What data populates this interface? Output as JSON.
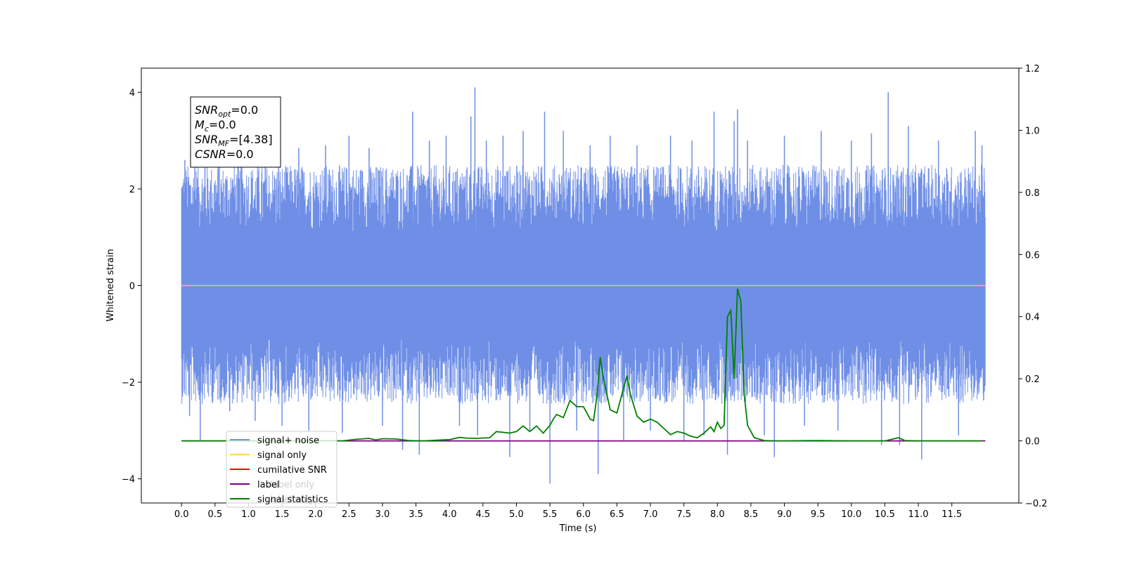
{
  "chart_data": {
    "type": "line",
    "title": "",
    "xlabel": "Time (s)",
    "ylabel": "Whitened strain",
    "y2label": "",
    "xlim": [
      -0.6,
      12.5
    ],
    "ylim": [
      -4.5,
      4.5
    ],
    "y2lim": [
      -0.2,
      1.2
    ],
    "x_ticks": [
      "0.0",
      "0.5",
      "1.0",
      "1.5",
      "2.0",
      "2.5",
      "3.0",
      "3.5",
      "4.0",
      "4.5",
      "5.0",
      "5.5",
      "6.0",
      "6.5",
      "7.0",
      "7.5",
      "8.0",
      "8.5",
      "9.0",
      "9.5",
      "10.0",
      "10.5",
      "11.0",
      "11.5"
    ],
    "y_ticks": [
      "-4",
      "-2",
      "0",
      "2",
      "4"
    ],
    "y2_ticks": [
      "-0.2",
      "0.0",
      "0.2",
      "0.4",
      "0.6",
      "0.8",
      "1.0",
      "1.2"
    ],
    "grid": false,
    "legend_position": "lower-left",
    "noise_band": {
      "x_range": [
        0.0,
        12.0
      ],
      "typical_range": [
        -1.8,
        1.8
      ],
      "spikes": [
        [
          0.05,
          2.6
        ],
        [
          0.12,
          -2.7
        ],
        [
          0.2,
          3.2
        ],
        [
          0.28,
          -3.2
        ],
        [
          0.35,
          3.05
        ],
        [
          0.55,
          2.75
        ],
        [
          0.72,
          -2.6
        ],
        [
          0.9,
          2.9
        ],
        [
          1.1,
          -2.8
        ],
        [
          1.25,
          2.75
        ],
        [
          1.45,
          3.0
        ],
        [
          1.5,
          -2.9
        ],
        [
          1.75,
          2.85
        ],
        [
          1.9,
          -3.0
        ],
        [
          2.15,
          2.9
        ],
        [
          2.4,
          -3.05
        ],
        [
          2.5,
          3.1
        ],
        [
          2.8,
          2.85
        ],
        [
          3.0,
          -2.9
        ],
        [
          3.3,
          -3.4
        ],
        [
          3.45,
          3.6
        ],
        [
          3.55,
          -3.5
        ],
        [
          3.7,
          3.0
        ],
        [
          3.95,
          3.1
        ],
        [
          4.15,
          -2.9
        ],
        [
          4.32,
          3.5
        ],
        [
          4.38,
          4.1
        ],
        [
          4.42,
          -3.1
        ],
        [
          4.55,
          3.0
        ],
        [
          4.8,
          3.1
        ],
        [
          4.9,
          -3.55
        ],
        [
          5.1,
          3.2
        ],
        [
          5.2,
          -3.0
        ],
        [
          5.42,
          3.6
        ],
        [
          5.5,
          -4.1
        ],
        [
          5.7,
          3.2
        ],
        [
          5.9,
          -3.0
        ],
        [
          6.1,
          2.9
        ],
        [
          6.22,
          -3.9
        ],
        [
          6.4,
          3.1
        ],
        [
          6.6,
          -3.2
        ],
        [
          6.8,
          2.9
        ],
        [
          7.0,
          -3.0
        ],
        [
          7.3,
          3.1
        ],
        [
          7.5,
          -3.2
        ],
        [
          7.62,
          3.0
        ],
        [
          7.8,
          -3.1
        ],
        [
          7.95,
          3.6
        ],
        [
          8.15,
          -3.5
        ],
        [
          8.25,
          3.4
        ],
        [
          8.3,
          3.65
        ],
        [
          8.45,
          3.0
        ],
        [
          8.7,
          -3.1
        ],
        [
          8.85,
          -3.55
        ],
        [
          9.0,
          3.1
        ],
        [
          9.3,
          -2.9
        ],
        [
          9.55,
          3.2
        ],
        [
          9.8,
          -3.0
        ],
        [
          10.0,
          3.0
        ],
        [
          10.3,
          3.15
        ],
        [
          10.45,
          -3.3
        ],
        [
          10.55,
          4.0
        ],
        [
          10.72,
          -3.3
        ],
        [
          10.85,
          3.3
        ],
        [
          11.05,
          -3.6
        ],
        [
          11.3,
          3.0
        ],
        [
          11.6,
          -3.1
        ],
        [
          11.85,
          3.2
        ],
        [
          11.95,
          2.9
        ]
      ]
    },
    "series": [
      {
        "name": "signal+ noise",
        "color": "#6f8fe6",
        "axis": "left",
        "description_values": "noise band"
      },
      {
        "name": "signal only",
        "color": "#ffbf40",
        "axis": "left",
        "x": [
          0.0,
          12.0
        ],
        "y": [
          0.0,
          0.0
        ]
      },
      {
        "name": "cumilative SNR",
        "color": "#ff0000",
        "axis": "left",
        "x": [],
        "y": []
      },
      {
        "name": "label",
        "color": "#800080",
        "axis": "right",
        "x": [
          0.0,
          12.0
        ],
        "y": [
          0.0,
          0.0
        ]
      },
      {
        "name": "signal statistics",
        "color": "#008000",
        "axis": "right",
        "x": [
          0.0,
          2.0,
          2.4,
          2.6,
          2.8,
          2.9,
          3.0,
          3.2,
          3.4,
          3.6,
          3.8,
          4.0,
          4.15,
          4.25,
          4.4,
          4.6,
          4.7,
          4.9,
          5.0,
          5.1,
          5.2,
          5.3,
          5.4,
          5.5,
          5.55,
          5.6,
          5.7,
          5.8,
          5.9,
          6.0,
          6.1,
          6.15,
          6.2,
          6.25,
          6.3,
          6.4,
          6.5,
          6.6,
          6.65,
          6.7,
          6.8,
          6.9,
          7.0,
          7.05,
          7.1,
          7.2,
          7.3,
          7.4,
          7.5,
          7.6,
          7.7,
          7.8,
          7.9,
          7.95,
          8.0,
          8.05,
          8.1,
          8.15,
          8.2,
          8.25,
          8.3,
          8.35,
          8.4,
          8.45,
          8.55,
          8.7,
          8.85,
          9.0,
          9.5,
          10.0,
          10.5,
          10.6,
          10.7,
          10.8,
          11.0,
          11.5,
          11.95
        ],
        "y": [
          0.0,
          0.0,
          0.0,
          0.005,
          0.008,
          0.003,
          0.007,
          0.006,
          0.001,
          0.0,
          0.002,
          0.004,
          0.011,
          0.009,
          0.008,
          0.01,
          0.03,
          0.025,
          0.03,
          0.048,
          0.03,
          0.048,
          0.025,
          0.05,
          0.07,
          0.085,
          0.075,
          0.13,
          0.11,
          0.11,
          0.07,
          0.065,
          0.14,
          0.27,
          0.2,
          0.1,
          0.09,
          0.17,
          0.21,
          0.15,
          0.08,
          0.06,
          0.07,
          0.065,
          0.06,
          0.04,
          0.02,
          0.03,
          0.025,
          0.015,
          0.01,
          0.025,
          0.045,
          0.03,
          0.06,
          0.04,
          0.05,
          0.4,
          0.42,
          0.2,
          0.49,
          0.45,
          0.15,
          0.05,
          0.01,
          0.001,
          0.0,
          0.0,
          0.001,
          0.0,
          0.0,
          0.005,
          0.01,
          0.001,
          0.0,
          0.0,
          0.0
        ]
      }
    ],
    "annotation": {
      "lines": [
        {
          "base": "SNR",
          "sub": "opt",
          "rest": "=0.0"
        },
        {
          "base": "M",
          "sub": "c",
          "rest": "=0.0"
        },
        {
          "base": "SNR",
          "sub": "MF",
          "rest": "=[4.38]"
        },
        {
          "base": "CSNR",
          "sub": "",
          "rest": "=0.0"
        }
      ]
    },
    "legend_entries": [
      "signal+ noise",
      "signal only",
      "cumilative SNR",
      "label",
      "signal statistics"
    ],
    "occluded_text": [
      "label only",
      "label only"
    ],
    "colors": {
      "noise": "#6f8fe6",
      "signal_only": "#ffbf40",
      "cumulative_snr": "#ff0000",
      "label": "#800080",
      "signal_statistics": "#008000"
    }
  }
}
